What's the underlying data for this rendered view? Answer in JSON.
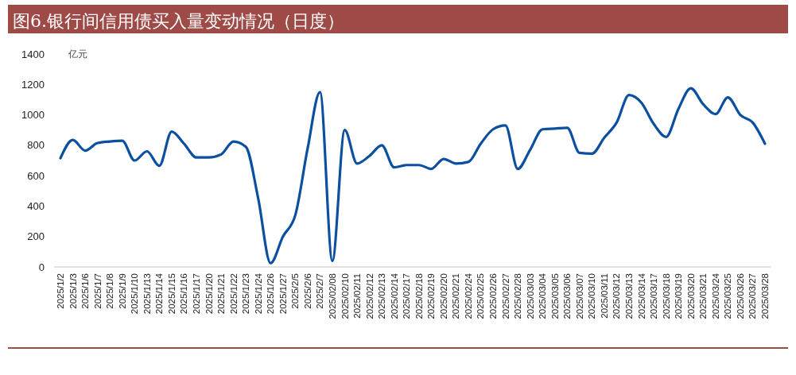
{
  "chart_data": {
    "type": "line",
    "title": "图6.银行间信用债买入量变动情况（日度）",
    "ylabel": "亿元",
    "categories": [
      "2025/1/2",
      "2025/1/3",
      "2025/1/6",
      "2025/1/7",
      "2025/1/8",
      "2025/1/9",
      "2025/1/10",
      "2025/1/13",
      "2025/1/14",
      "2025/1/15",
      "2025/1/16",
      "2025/1/17",
      "2025/1/20",
      "2025/1/21",
      "2025/1/22",
      "2025/1/23",
      "2025/1/24",
      "2025/1/26",
      "2025/1/27",
      "2025/2/5",
      "2025/2/6",
      "2025/2/7",
      "2025/02/08",
      "2025/02/10",
      "2025/02/11",
      "2025/02/12",
      "2025/02/13",
      "2025/02/14",
      "2025/02/17",
      "2025/02/18",
      "2025/02/19",
      "2025/02/20",
      "2025/02/21",
      "2025/02/24",
      "2025/02/25",
      "2025/02/26",
      "2025/02/27",
      "2025/02/28",
      "2025/03/03",
      "2025/03/04",
      "2025/03/05",
      "2025/03/06",
      "2025/03/07",
      "2025/03/10",
      "2025/03/11",
      "2025/03/12",
      "2025/03/13",
      "2025/03/14",
      "2025/03/17",
      "2025/03/18",
      "2025/03/19",
      "2025/03/20",
      "2025/03/21",
      "2025/03/24",
      "2025/03/25",
      "2025/03/26",
      "2025/03/27",
      "2025/03/28"
    ],
    "series": [
      {
        "color": "#0b4fa0",
        "values": [
          715,
          835,
          765,
          815,
          825,
          830,
          700,
          760,
          665,
          890,
          810,
          720,
          720,
          740,
          825,
          790,
          450,
          25,
          200,
          340,
          780,
          1150,
          40,
          900,
          680,
          730,
          800,
          655,
          670,
          670,
          645,
          710,
          680,
          690,
          810,
          905,
          930,
          645,
          770,
          905,
          910,
          915,
          750,
          745,
          850,
          950,
          1130,
          1080,
          940,
          855,
          1040,
          1175,
          1070,
          1005,
          1115,
          1000,
          950,
          810
        ]
      }
    ],
    "ylim": [
      0,
      1400
    ],
    "yticks": [
      0,
      200,
      400,
      600,
      800,
      1000,
      1200,
      1400
    ],
    "grid": false,
    "marker": "none",
    "line_style": "solid"
  }
}
